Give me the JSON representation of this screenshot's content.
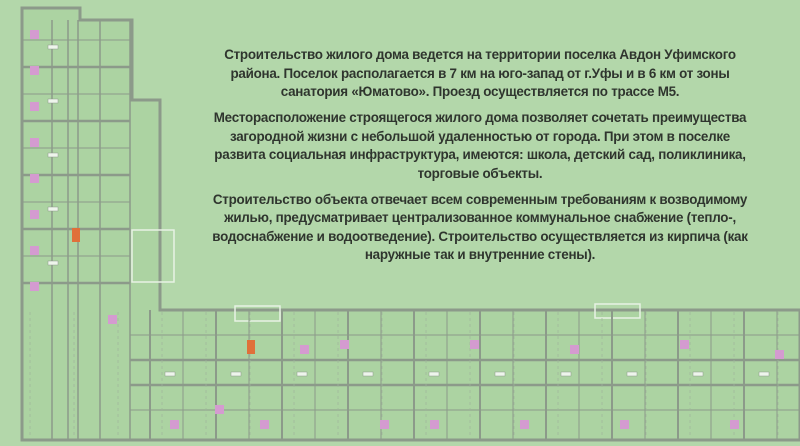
{
  "colors": {
    "background": "#b3d7aa",
    "plan_fill": "#acd3a2",
    "walls": "#8c9a8a",
    "room_marker": "#d49bd0",
    "stair_marker": "#e0703a",
    "text": "#2f352e"
  },
  "plan": {
    "icon": "floor-plan-drawing"
  },
  "paragraphs": [
    {
      "lines": [
        "Строительство жилого дома ведется  на территории поселка Авдон Уфимского",
        "района. Поселок располагается в 7 км на юго-запад от г.Уфы и в 6 км от зоны",
        "санатория «Юматово». Проезд осуществляется по трассе М5."
      ]
    },
    {
      "lines": [
        "Месторасположение  строящегося жилого дома позволяет сочетать преимущества",
        "загородной жизни с небольшой удаленностью от города.  При этом в  поселке",
        "развита социальная инфраструктура, имеются: школа, детский сад, поликлиника,",
        "торговые объекты."
      ]
    },
    {
      "lines": [
        "Строительство объекта отвечает всем  современным требованиям  к возводимому",
        "жилью, предусматривает централизованное коммунальное снабжение (тепло-,",
        "водоснабжение и водоотведение). Строительство осуществляется из кирпича (как",
        "наружные так и внутренние стены)."
      ]
    }
  ]
}
